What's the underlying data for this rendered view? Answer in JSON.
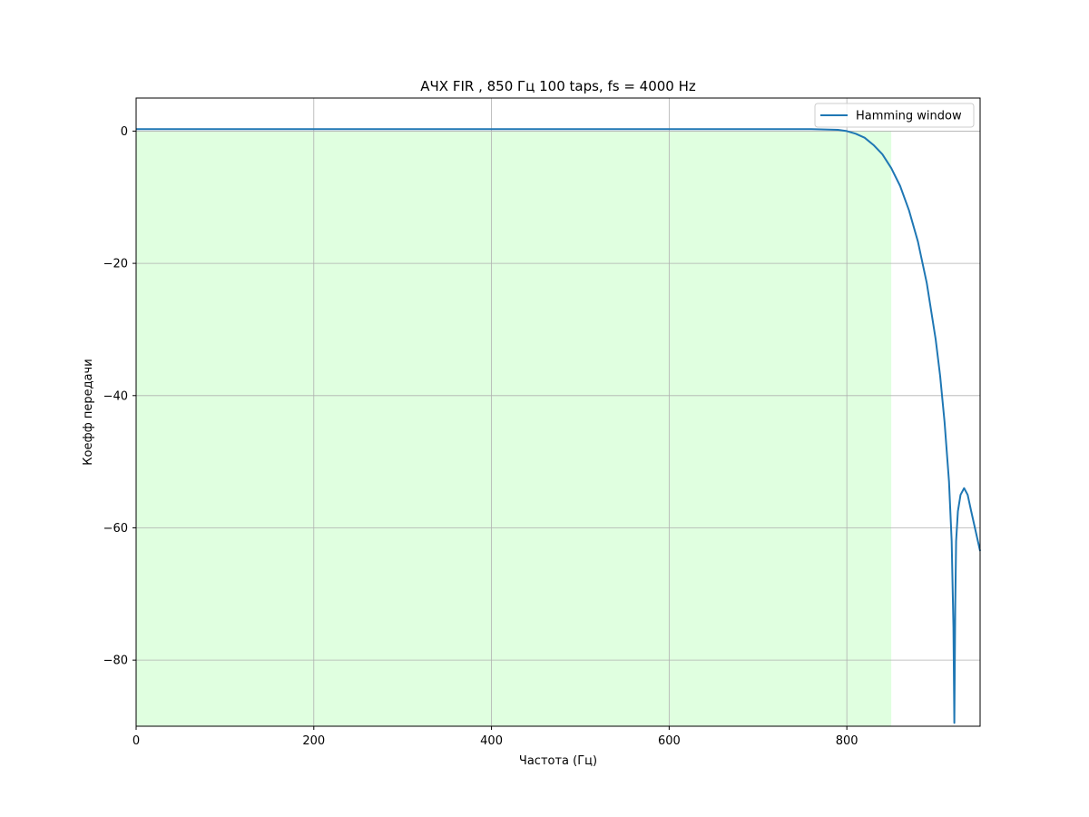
{
  "chart_data": {
    "type": "line",
    "title": "АЧХ FIR , 850  Гц 100 taps, fs = 4000 Hz",
    "xlabel": "Частота (Гц)",
    "ylabel": "Коефф передачи",
    "xlim": [
      0,
      950
    ],
    "ylim": [
      -90,
      5
    ],
    "xticks": [
      0,
      200,
      400,
      600,
      800
    ],
    "yticks": [
      0,
      -20,
      -40,
      -60,
      -80
    ],
    "grid": true,
    "legend_position": "top-right",
    "shaded_band": {
      "x_from": 0,
      "x_to": 850,
      "color": "#e0ffe0"
    },
    "series": [
      {
        "name": "Hamming window",
        "color": "#1f77b4",
        "x": [
          0,
          100,
          200,
          300,
          400,
          500,
          600,
          700,
          760,
          790,
          800,
          810,
          820,
          830,
          840,
          850,
          860,
          870,
          880,
          890,
          900,
          905,
          910,
          915,
          918,
          920,
          921,
          922,
          923,
          925,
          928,
          932,
          936,
          940,
          945,
          950
        ],
        "y": [
          0.3,
          0.3,
          0.3,
          0.3,
          0.3,
          0.3,
          0.3,
          0.3,
          0.3,
          0.2,
          0.0,
          -0.4,
          -1.0,
          -2.1,
          -3.5,
          -5.6,
          -8.3,
          -12.0,
          -16.7,
          -23.0,
          -31.5,
          -37.0,
          -44.0,
          -53.0,
          -62.0,
          -75.0,
          -89.5,
          -72.0,
          -62.0,
          -57.5,
          -55.0,
          -54.0,
          -55.0,
          -57.5,
          -60.5,
          -63.5
        ]
      }
    ]
  }
}
